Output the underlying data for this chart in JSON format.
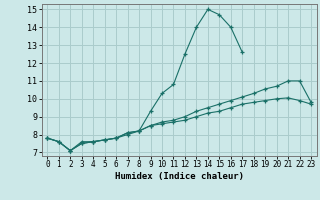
{
  "xlabel": "Humidex (Indice chaleur)",
  "xlim": [
    -0.5,
    23.5
  ],
  "ylim": [
    6.8,
    15.3
  ],
  "yticks": [
    7,
    8,
    9,
    10,
    11,
    12,
    13,
    14,
    15
  ],
  "xticks": [
    0,
    1,
    2,
    3,
    4,
    5,
    6,
    7,
    8,
    9,
    10,
    11,
    12,
    13,
    14,
    15,
    16,
    17,
    18,
    19,
    20,
    21,
    22,
    23
  ],
  "bg_color": "#cce8e8",
  "grid_color": "#aacccc",
  "line_color": "#1a7068",
  "line1_x": [
    0,
    1,
    2,
    3,
    4,
    5,
    6,
    7,
    8,
    9,
    10,
    11,
    12,
    13,
    14,
    15,
    16,
    17
  ],
  "line1_y": [
    7.8,
    7.6,
    7.1,
    7.6,
    7.6,
    7.7,
    7.8,
    8.0,
    8.2,
    9.3,
    10.3,
    10.8,
    12.5,
    14.0,
    15.0,
    14.7,
    14.0,
    12.6
  ],
  "line2_x": [
    0,
    1,
    2,
    3,
    4,
    5,
    6,
    7,
    8,
    9,
    10,
    11,
    12,
    13,
    14,
    15,
    16,
    17,
    18,
    19,
    20,
    21,
    22,
    23
  ],
  "line2_y": [
    7.8,
    7.6,
    7.1,
    7.5,
    7.6,
    7.7,
    7.8,
    8.1,
    8.2,
    8.5,
    8.7,
    8.8,
    9.0,
    9.3,
    9.5,
    9.7,
    9.9,
    10.1,
    10.3,
    10.55,
    10.7,
    11.0,
    11.0,
    9.8
  ],
  "line3_x": [
    0,
    1,
    2,
    3,
    4,
    5,
    6,
    7,
    8,
    9,
    10,
    11,
    12,
    13,
    14,
    15,
    16,
    17,
    18,
    19,
    20,
    21,
    22,
    23
  ],
  "line3_y": [
    7.8,
    7.6,
    7.1,
    7.5,
    7.6,
    7.7,
    7.8,
    8.1,
    8.2,
    8.5,
    8.6,
    8.7,
    8.8,
    9.0,
    9.2,
    9.3,
    9.5,
    9.7,
    9.8,
    9.9,
    10.0,
    10.05,
    9.9,
    9.7
  ],
  "xlabel_fontsize": 6.5,
  "tick_fontsize": 5.5
}
